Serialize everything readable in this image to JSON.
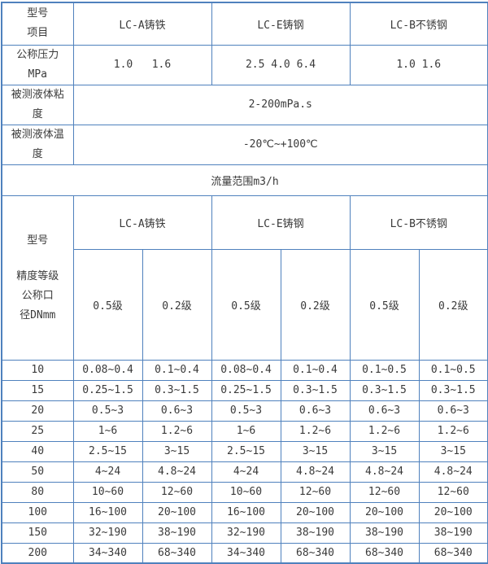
{
  "colors": {
    "border_blue": "#4f81bd",
    "text": "#3a3a3a",
    "background": "#ffffff"
  },
  "table1": {
    "corner": "型号\n项目",
    "columns": [
      "LC-A铸铁",
      "LC-E铸钢",
      "LC-B不锈钢"
    ],
    "pressure": {
      "label": "公称压力\nMPa",
      "values": [
        "1.0   1.6",
        "2.5 4.0 6.4",
        "1.0 1.6"
      ]
    },
    "viscosity": {
      "label": "被测液体粘\n度",
      "value": "2-200mPa.s"
    },
    "temperature": {
      "label": "被测液体温\n度",
      "value": "-20℃~+100℃"
    },
    "flow_range_title": "流量范围m3/h"
  },
  "table2": {
    "corner_top": "型号",
    "corner_bottom": "精度等级\n公称口\n径DNmm",
    "columns": [
      "LC-A铸铁",
      "LC-E铸钢",
      "LC-B不锈钢"
    ],
    "accuracy_labels": [
      "0.5级",
      "0.2级",
      "0.5级",
      "0.2级",
      "0.5级",
      "0.2级"
    ],
    "rows": [
      {
        "dn": "10",
        "values": [
          "0.08~0.4",
          "0.1~0.4",
          "0.08~0.4",
          "0.1~0.4",
          "0.1~0.5",
          "0.1~0.5"
        ]
      },
      {
        "dn": "15",
        "values": [
          "0.25~1.5",
          "0.3~1.5",
          "0.25~1.5",
          "0.3~1.5",
          "0.3~1.5",
          "0.3~1.5"
        ]
      },
      {
        "dn": "20",
        "values": [
          "0.5~3",
          "0.6~3",
          "0.5~3",
          "0.6~3",
          "0.6~3",
          "0.6~3"
        ]
      },
      {
        "dn": "25",
        "values": [
          "1~6",
          "1.2~6",
          "1~6",
          "1.2~6",
          "1.2~6",
          "1.2~6"
        ]
      },
      {
        "dn": "40",
        "values": [
          "2.5~15",
          "3~15",
          "2.5~15",
          "3~15",
          "3~15",
          "3~15"
        ]
      },
      {
        "dn": "50",
        "values": [
          "4~24",
          "4.8~24",
          "4~24",
          "4.8~24",
          "4.8~24",
          "4.8~24"
        ]
      },
      {
        "dn": "80",
        "values": [
          "10~60",
          "12~60",
          "10~60",
          "12~60",
          "12~60",
          "12~60"
        ]
      },
      {
        "dn": "100",
        "values": [
          "16~100",
          "20~100",
          "16~100",
          "20~100",
          "20~100",
          "20~100"
        ]
      },
      {
        "dn": "150",
        "values": [
          "32~190",
          "38~190",
          "32~190",
          "38~190",
          "38~190",
          "38~190"
        ]
      },
      {
        "dn": "200",
        "values": [
          "34~340",
          "68~340",
          "34~340",
          "68~340",
          "68~340",
          "68~340"
        ]
      }
    ]
  }
}
